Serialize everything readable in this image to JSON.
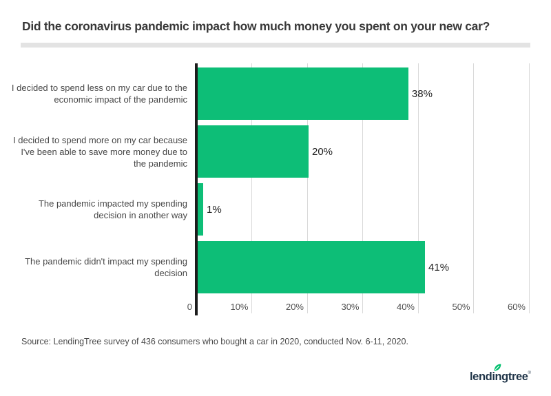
{
  "header": {
    "title": "Did the coronavirus pandemic impact how much money you spent on your new car?"
  },
  "source": {
    "text": "Source: LendingTree survey of 436 consumers who bought a car in 2020, conducted Nov. 6-11, 2020."
  },
  "logo": {
    "text": "lendingtree",
    "mark": "®",
    "text_color": "#1f3448",
    "leaf_color": "#00c06d"
  },
  "chart_data": {
    "type": "bar",
    "orientation": "horizontal",
    "title": "Did the coronavirus pandemic impact how much money you spent on your new car?",
    "categories": [
      "I decided to spend less on my car due to the economic impact of the pandemic",
      "I decided to spend more on my car because I've been able to save more money due to the pandemic",
      "The pandemic impacted my spending decision in another way",
      "The pandemic didn't impact my spending decision"
    ],
    "label_lines": [
      [
        "I decided to spend less on my car due to the",
        "economic impact of the pandemic"
      ],
      [
        "I decided to spend more on my car because",
        "I've been able to save more money due to",
        "the pandemic"
      ],
      [
        "The pandemic impacted my spending",
        "decision in another way"
      ],
      [
        "The pandemic didn't impact my spending",
        "decision"
      ]
    ],
    "values": [
      38,
      20,
      1,
      41
    ],
    "value_labels": [
      "38%",
      "20%",
      "1%",
      "41%"
    ],
    "xlabel": "",
    "ylabel": "",
    "xlim": [
      0,
      60
    ],
    "x_tick_values": [
      0,
      10,
      20,
      30,
      40,
      50,
      60
    ],
    "x_tick_labels": [
      "0",
      "10%",
      "20%",
      "30%",
      "40%",
      "50%",
      "60%"
    ],
    "grid": true,
    "legend": false,
    "bar_color": "#0dbe77",
    "axis_color": "#1c1c1c",
    "gridline_color": "#d9d9d9"
  }
}
